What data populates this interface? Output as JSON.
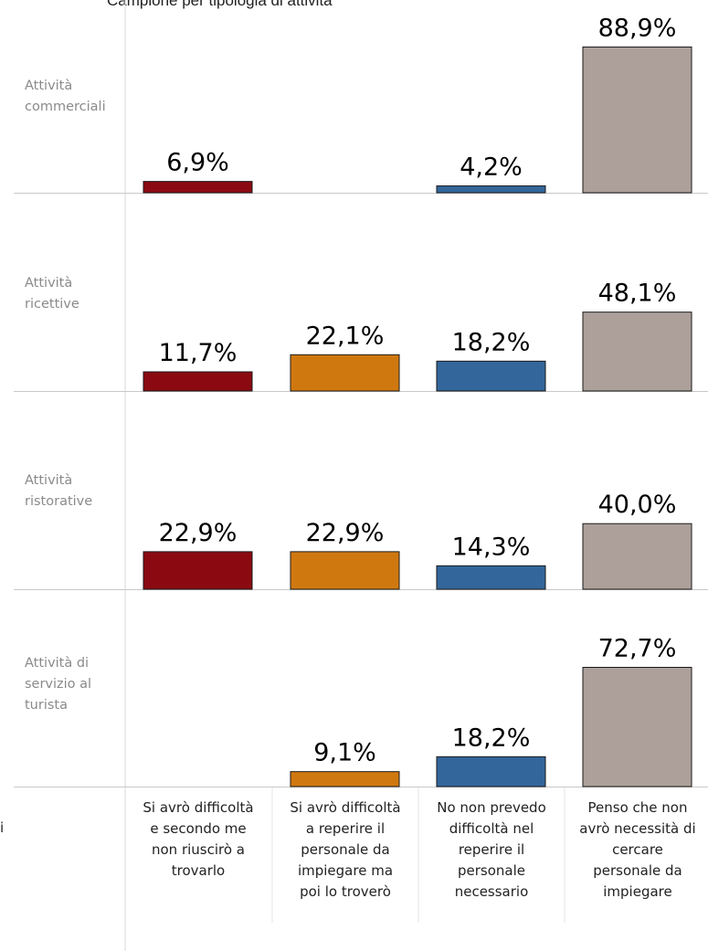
{
  "chart_data": {
    "type": "bar",
    "title": "Campione per tipologia di attività",
    "categories": [
      "Si avrò difficoltà e secondo me non riuscirò a trovarlo",
      "Si avrò difficoltà a reperire il personale da impiegare ma poi lo troverò",
      "No non prevedo difficoltà nel reperire il personale necessario",
      "Penso che non avrò necessità di cercare personale da impiegare"
    ],
    "category_label_lines": [
      [
        "Si avrò difficoltà",
        "e secondo me",
        "non riuscirò a",
        "trovarlo"
      ],
      [
        "Si avrò difficoltà",
        "a reperire il",
        "personale da",
        "impiegare ma",
        "poi lo troverò"
      ],
      [
        "No non prevedo",
        "difficoltà nel",
        "reperire il",
        "personale",
        "necessario"
      ],
      [
        "Penso che non",
        "avrò necessità di",
        "cercare",
        "personale da",
        "impiegare"
      ]
    ],
    "colors": [
      "#8b0a12",
      "#d07810",
      "#33669a",
      "#ada09b"
    ],
    "panels": [
      {
        "row_label_lines": [
          "Attività",
          "commerciali"
        ],
        "values": [
          6.9,
          null,
          4.2,
          88.9
        ],
        "labels": [
          "6,9%",
          "",
          "4,2%",
          "88,9%"
        ]
      },
      {
        "row_label_lines": [
          "Attività",
          "ricettive"
        ],
        "values": [
          11.7,
          22.1,
          18.2,
          48.1
        ],
        "labels": [
          "11,7%",
          "22,1%",
          "18,2%",
          "48,1%"
        ]
      },
      {
        "row_label_lines": [
          "Attività",
          "ristorative"
        ],
        "values": [
          22.9,
          22.9,
          14.3,
          40.0
        ],
        "labels": [
          "22,9%",
          "22,9%",
          "14,3%",
          "40,0%"
        ]
      },
      {
        "row_label_lines": [
          "Attività di",
          "servizio al",
          "turista"
        ],
        "values": [
          null,
          9.1,
          18.2,
          72.7
        ],
        "labels": [
          "",
          "9,1%",
          "18,2%",
          "72,7%"
        ]
      }
    ],
    "edge_fragment": "i"
  }
}
